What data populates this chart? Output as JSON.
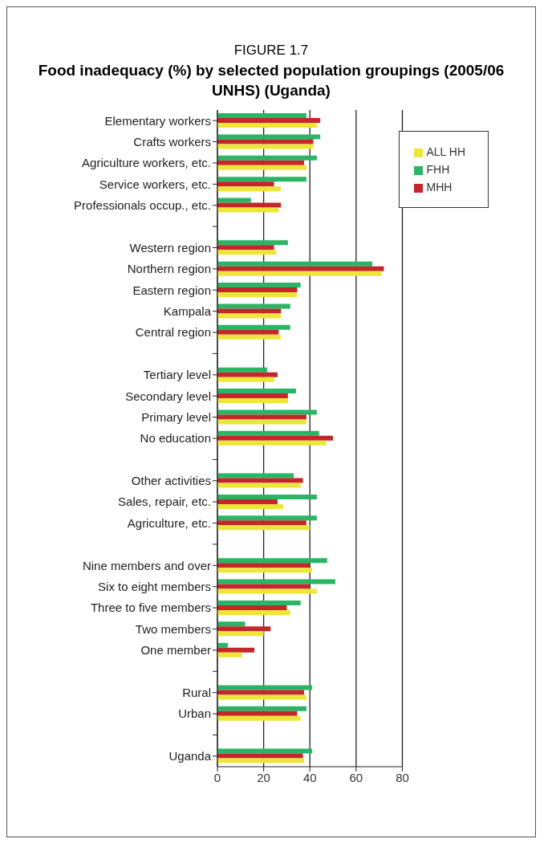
{
  "chart_data": {
    "type": "bar",
    "orientation": "horizontal",
    "title": "FIGURE 1.7",
    "subtitle": "Food inadequacy (%) by selected population groupings (2005/06 UNHS) (Uganda)",
    "categories": [
      "Elementary workers",
      "Crafts workers",
      "Agriculture workers, etc.",
      "Service workers, etc.",
      "Professionals occup., etc.",
      null,
      "Western region",
      "Northern region",
      "Eastern region",
      "Kampala",
      "Central region",
      null,
      "Tertiary level",
      "Secondary level",
      "Primary level",
      "No education",
      null,
      "Other activities",
      "Sales, repair, etc.",
      "Agriculture, etc.",
      null,
      "Nine members and over",
      "Six to eight members",
      "Three to five members",
      "Two members",
      "One member",
      null,
      "Rural",
      "Urban",
      null,
      "Uganda"
    ],
    "series": [
      {
        "name": "FHH",
        "color": "#2ab564",
        "values": [
          38.5,
          44.5,
          43,
          38.5,
          14.5,
          null,
          30.5,
          67,
          36,
          31.5,
          31.5,
          null,
          21.5,
          34,
          43,
          44,
          null,
          33,
          43,
          43,
          null,
          47.5,
          51,
          36,
          12,
          4.5,
          null,
          41,
          38.5,
          null,
          41
        ]
      },
      {
        "name": "MHH",
        "color": "#c4262b",
        "values": [
          44.5,
          41.5,
          37.5,
          24.5,
          27.5,
          null,
          24.5,
          72,
          34.5,
          27.5,
          26.5,
          null,
          26,
          30.5,
          38.5,
          50,
          null,
          37,
          26,
          38.5,
          null,
          40,
          40,
          30,
          23,
          16,
          null,
          37.5,
          34.5,
          null,
          37
        ]
      },
      {
        "name": "ALL HH",
        "color": "#ede63a",
        "values": [
          43,
          41.5,
          38.5,
          27.5,
          26.5,
          null,
          25.5,
          71,
          34.5,
          27.5,
          27.5,
          null,
          24.5,
          30.5,
          38.5,
          47,
          null,
          36,
          28.5,
          40,
          null,
          41,
          43,
          31.5,
          20,
          10.5,
          null,
          38.5,
          36,
          null,
          37.5
        ]
      }
    ],
    "xlim": [
      0,
      80
    ],
    "xticks": [
      0,
      20,
      40,
      60,
      80
    ],
    "grid": "x",
    "legend": "top right"
  }
}
